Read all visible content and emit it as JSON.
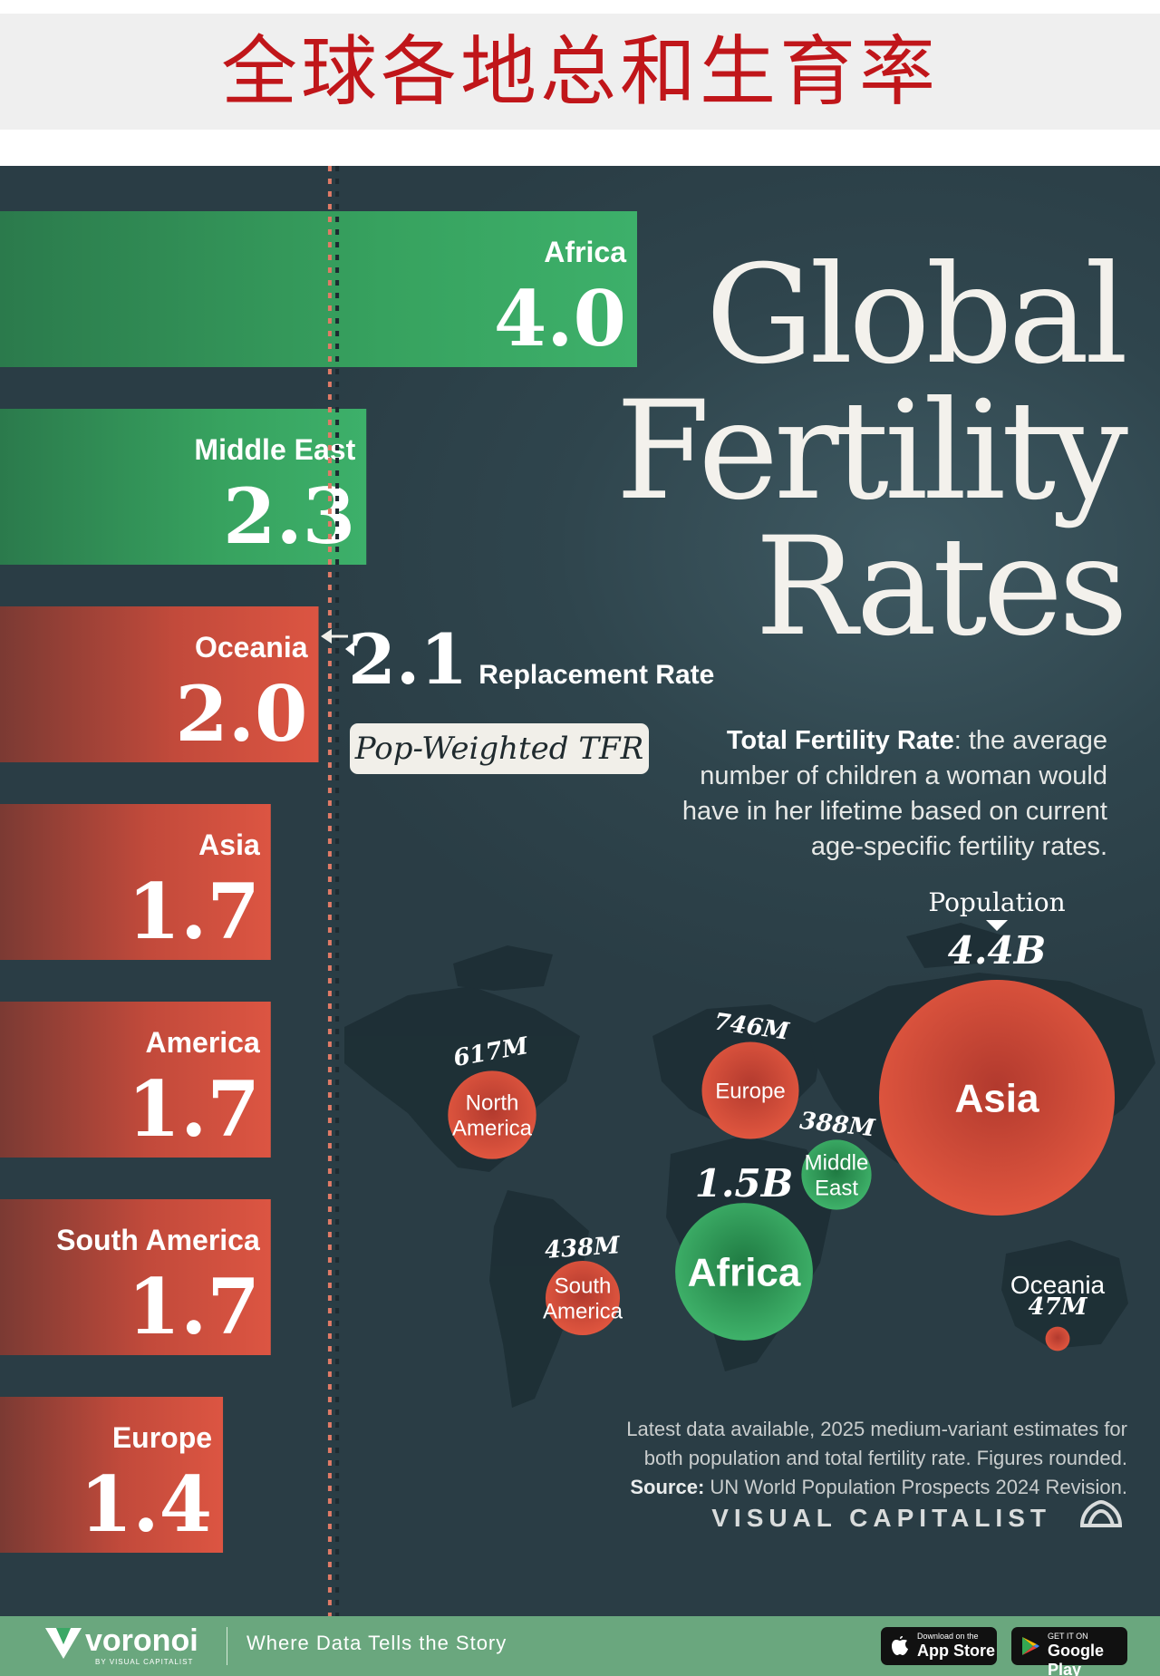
{
  "page_title": "全球各地总和生育率",
  "title_lines": [
    "Global",
    "Fertility",
    "Rates"
  ],
  "definition": {
    "term": "Total Fertility Rate",
    "text": ": the average number of children a woman would have in her lifetime based on current age-specific fertility rates."
  },
  "replacement": {
    "value": "2.1",
    "label": "Replacement Rate"
  },
  "pop_weighted_label": "Pop-Weighted TFR",
  "population_label": "Population",
  "footnote": {
    "line1": "Latest data available, 2025 medium-variant estimates for",
    "line2": "both population and total fertility rate. Figures rounded.",
    "source_label": "Source:",
    "source_text": " UN World Population Prospects 2024 Revision."
  },
  "brand": "VISUAL CAPITALIST",
  "footer": {
    "name": "voronoi",
    "sub": "BY VISUAL CAPITALIST",
    "tagline": "Where Data Tells the Story",
    "app_store_top": "Download on the",
    "app_store": "App Store",
    "google_top": "GET IT ON",
    "google": "Google Play"
  },
  "colors": {
    "above": "#3aa865",
    "below": "#d1503f",
    "background": "#2f454d",
    "footer": "#6aa77e",
    "title_red": "#c0161a"
  },
  "chart_data": {
    "type": "bar",
    "categories": [
      "Africa",
      "Middle East",
      "Oceania",
      "Asia",
      "America",
      "South America",
      "Europe"
    ],
    "values": [
      4.0,
      2.3,
      2.0,
      1.7,
      1.7,
      1.7,
      1.4
    ],
    "value_labels": [
      "4.0",
      "2.3",
      "2.0",
      "1.7",
      "1.7",
      "1.7",
      "1.4"
    ],
    "reference_lines": [
      {
        "value": 2.1,
        "label": "Replacement Rate"
      },
      {
        "value": 1.9,
        "label": "Pop-Weighted TFR"
      }
    ],
    "xlim": [
      0,
      4.0
    ]
  },
  "map_bubbles": [
    {
      "region_lines": [
        "North",
        "America"
      ],
      "population": "617M",
      "population_value_m": 617,
      "tfr": 1.7
    },
    {
      "region_lines": [
        "Europe"
      ],
      "population": "746M",
      "population_value_m": 746,
      "tfr": 1.4
    },
    {
      "region_lines": [
        "Asia"
      ],
      "population": "4.4B",
      "population_value_m": 4400,
      "tfr": 1.7
    },
    {
      "region_lines": [
        "Middle",
        "East"
      ],
      "population": "388M",
      "population_value_m": 388,
      "tfr": 2.3
    },
    {
      "region_lines": [
        "Africa"
      ],
      "population": "1.5B",
      "population_value_m": 1500,
      "tfr": 4.0
    },
    {
      "region_lines": [
        "South",
        "America"
      ],
      "population": "438M",
      "population_value_m": 438,
      "tfr": 1.7
    },
    {
      "region_lines": [
        "Oceania"
      ],
      "population": "47M",
      "population_value_m": 47,
      "tfr": 2.0
    }
  ]
}
